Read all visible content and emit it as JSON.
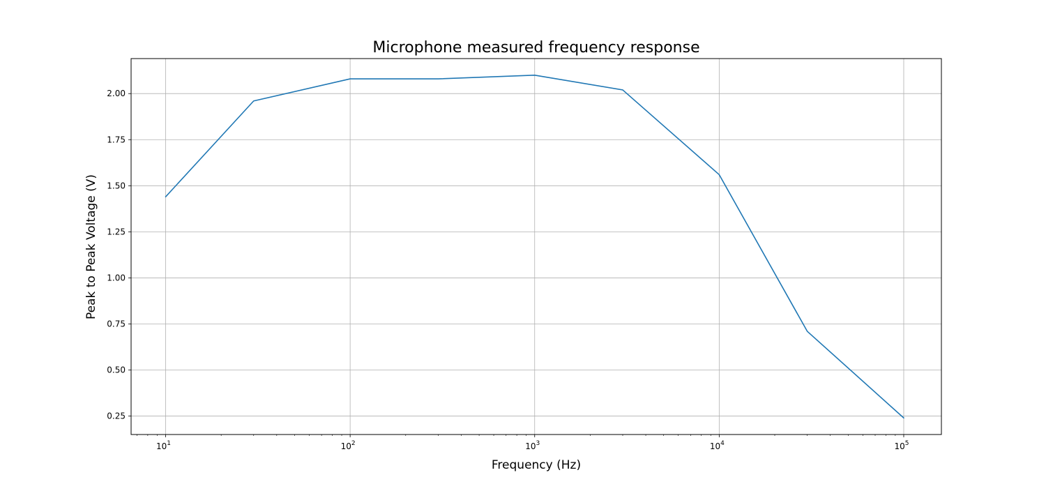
{
  "chart_data": {
    "type": "line",
    "title": "Microphone measured frequency response",
    "xlabel": "Frequency (Hz)",
    "ylabel": "Peak to Peak Voltage (V)",
    "xscale": "log",
    "xlim": [
      6.5,
      160000
    ],
    "ylim": [
      0.15,
      2.19
    ],
    "grid": true,
    "xticks": [
      {
        "value": 10,
        "base": "10",
        "exp": "1"
      },
      {
        "value": 100,
        "base": "10",
        "exp": "2"
      },
      {
        "value": 1000,
        "base": "10",
        "exp": "3"
      },
      {
        "value": 10000,
        "base": "10",
        "exp": "4"
      },
      {
        "value": 100000,
        "base": "10",
        "exp": "5"
      }
    ],
    "yticks": [
      {
        "value": 0.25,
        "label": "0.25"
      },
      {
        "value": 0.5,
        "label": "0.50"
      },
      {
        "value": 0.75,
        "label": "0.75"
      },
      {
        "value": 1.0,
        "label": "1.00"
      },
      {
        "value": 1.25,
        "label": "1.25"
      },
      {
        "value": 1.5,
        "label": "1.50"
      },
      {
        "value": 1.75,
        "label": "1.75"
      },
      {
        "value": 2.0,
        "label": "2.00"
      }
    ],
    "series": [
      {
        "color": "#1f77b4",
        "x": [
          10,
          30,
          100,
          300,
          1000,
          3000,
          10000,
          30000,
          100000
        ],
        "y": [
          1.44,
          1.96,
          2.08,
          2.08,
          2.1,
          2.02,
          1.56,
          0.71,
          0.24
        ]
      }
    ]
  }
}
